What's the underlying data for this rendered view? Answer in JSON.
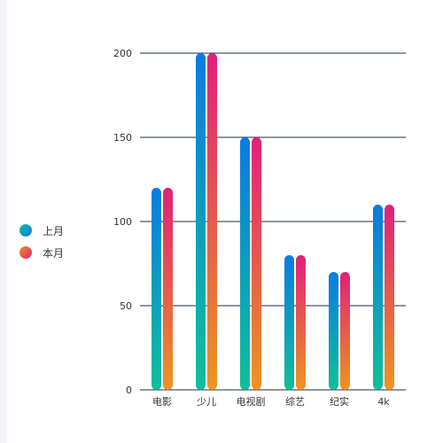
{
  "chart_data": {
    "type": "bar",
    "title": "",
    "xlabel": "",
    "ylabel": "",
    "categories": [
      "电影",
      "少儿",
      "电视剧",
      "综艺",
      "纪实",
      "4k"
    ],
    "series": [
      {
        "name": "上月",
        "values": [
          120,
          200,
          150,
          80,
          70,
          110
        ],
        "gradient": [
          "#0a7be3",
          "#10bf99"
        ]
      },
      {
        "name": "本月",
        "values": [
          120,
          200,
          150,
          80,
          70,
          110
        ],
        "gradient": [
          "#e0217a",
          "#ec9520"
        ]
      }
    ],
    "ylim": [
      0,
      200
    ],
    "yticks": [
      0,
      50,
      100,
      150,
      200
    ],
    "grid": true,
    "legend_position": "left"
  }
}
